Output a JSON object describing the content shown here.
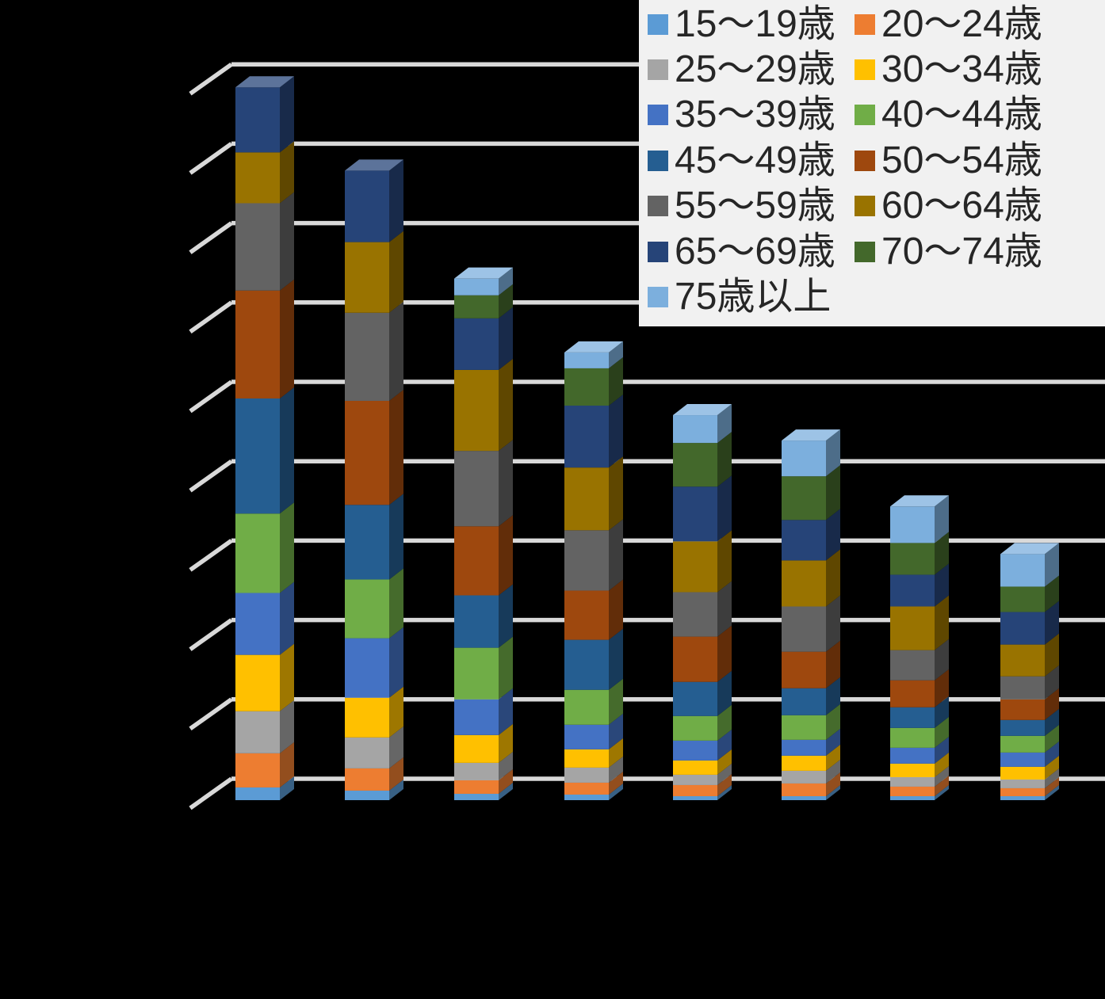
{
  "background": "#000000",
  "legend": {
    "background": "#F1F1F1",
    "text_color": "#262626",
    "position": "top-right",
    "columns": 2,
    "items": [
      {
        "label": "15〜19歳",
        "color": "#5B9BD5"
      },
      {
        "label": "20〜24歳",
        "color": "#ED7D31"
      },
      {
        "label": "25〜29歳",
        "color": "#A5A5A5"
      },
      {
        "label": "30〜34歳",
        "color": "#FFC000"
      },
      {
        "label": "35〜39歳",
        "color": "#4472C4"
      },
      {
        "label": "40〜44歳",
        "color": "#70AD47"
      },
      {
        "label": "45〜49歳",
        "color": "#255E91"
      },
      {
        "label": "50〜54歳",
        "color": "#9E480E"
      },
      {
        "label": "55〜59歳",
        "color": "#636363"
      },
      {
        "label": "60〜64歳",
        "color": "#997300"
      },
      {
        "label": "65〜69歳",
        "color": "#264478"
      },
      {
        "label": "70〜74歳",
        "color": "#43682B"
      },
      {
        "label": "75歳以上",
        "color": "#7CAFDD"
      }
    ]
  },
  "chart_data": {
    "type": "bar",
    "stacked": true,
    "three_d": true,
    "orientation": "vertical",
    "title": "",
    "xlabel": "",
    "ylabel": "",
    "bars_count": 8,
    "categories": [
      "",
      "",
      "",
      "",
      "",
      "",
      "",
      ""
    ],
    "series": [
      {
        "name": "15〜19歳",
        "color": "#5B9BD5",
        "values": [
          0.16,
          0.12,
          0.08,
          0.07,
          0.05,
          0.05,
          0.05,
          0.05
        ]
      },
      {
        "name": "20〜24歳",
        "color": "#ED7D31",
        "values": [
          0.43,
          0.28,
          0.17,
          0.15,
          0.14,
          0.16,
          0.12,
          0.1
        ]
      },
      {
        "name": "25〜29歳",
        "color": "#A5A5A5",
        "values": [
          0.53,
          0.39,
          0.22,
          0.19,
          0.13,
          0.16,
          0.12,
          0.11
        ]
      },
      {
        "name": "30〜34歳",
        "color": "#FFC000",
        "values": [
          0.71,
          0.5,
          0.35,
          0.23,
          0.18,
          0.19,
          0.17,
          0.16
        ]
      },
      {
        "name": "35〜39歳",
        "color": "#4472C4",
        "values": [
          0.78,
          0.75,
          0.45,
          0.31,
          0.25,
          0.2,
          0.2,
          0.18
        ]
      },
      {
        "name": "40〜44歳",
        "color": "#70AD47",
        "values": [
          1.0,
          0.74,
          0.65,
          0.44,
          0.31,
          0.31,
          0.25,
          0.21
        ]
      },
      {
        "name": "45〜49歳",
        "color": "#255E91",
        "values": [
          1.45,
          0.94,
          0.66,
          0.63,
          0.43,
          0.34,
          0.26,
          0.2
        ]
      },
      {
        "name": "50〜54歳",
        "color": "#9E480E",
        "values": [
          1.36,
          1.31,
          0.87,
          0.62,
          0.57,
          0.46,
          0.34,
          0.26
        ]
      },
      {
        "name": "55〜59歳",
        "color": "#636363",
        "values": [
          1.1,
          1.11,
          0.95,
          0.76,
          0.56,
          0.57,
          0.38,
          0.29
        ]
      },
      {
        "name": "60〜64歳",
        "color": "#997300",
        "values": [
          0.64,
          0.89,
          1.02,
          0.79,
          0.64,
          0.58,
          0.55,
          0.4
        ]
      },
      {
        "name": "65〜69歳",
        "color": "#264478",
        "values": [
          0.82,
          0.9,
          0.65,
          0.78,
          0.69,
          0.51,
          0.4,
          0.41
        ]
      },
      {
        "name": "70〜74歳",
        "color": "#43682B",
        "values": [
          0.0,
          0.0,
          0.29,
          0.47,
          0.55,
          0.55,
          0.4,
          0.32
        ]
      },
      {
        "name": "75歳以上",
        "color": "#7CAFDD",
        "values": [
          0.0,
          0.0,
          0.21,
          0.2,
          0.35,
          0.45,
          0.46,
          0.41
        ]
      }
    ],
    "ylim": [
      0,
      9
    ],
    "ytick_step": 1,
    "axis_tick_labels_visible": false,
    "grid": true,
    "gridline_color": "#D9D9D9",
    "legend_position": "top-right",
    "units_note": "values estimated in gridline units (numeric axis labels not visible in image)"
  }
}
